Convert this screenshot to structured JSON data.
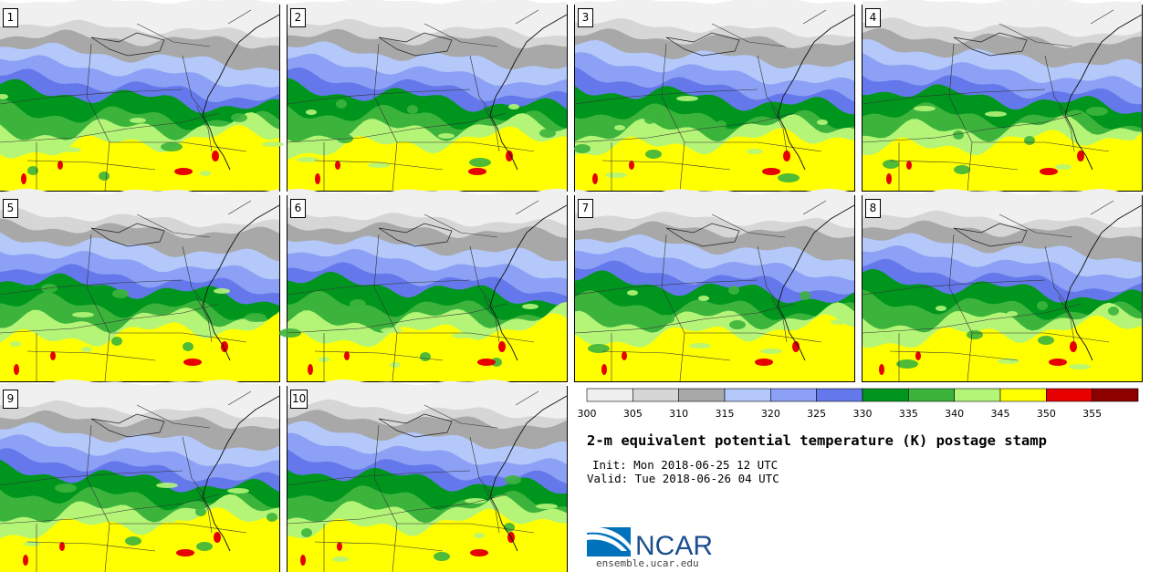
{
  "members": [
    "1",
    "2",
    "3",
    "4",
    "5",
    "6",
    "7",
    "8",
    "9",
    "10"
  ],
  "colorbar": {
    "tick_labels": [
      "300",
      "305",
      "310",
      "315",
      "320",
      "325",
      "330",
      "335",
      "340",
      "345",
      "350",
      "355"
    ],
    "colors": [
      "#f0f0f0",
      "#d6d6d6",
      "#a8a8a8",
      "#b4c8fa",
      "#8ca0f5",
      "#6478eb",
      "#00961e",
      "#3cb43c",
      "#b4f578",
      "#ffff00",
      "#e60000",
      "#8c0000"
    ]
  },
  "title": "2-m equivalent potential temperature (K) postage stamp",
  "init": "Init: Mon 2018-06-25 12 UTC",
  "valid": "Valid: Tue 2018-06-26 04 UTC",
  "logo_text": "NCAR",
  "website": "ensemble.ucar.edu"
}
